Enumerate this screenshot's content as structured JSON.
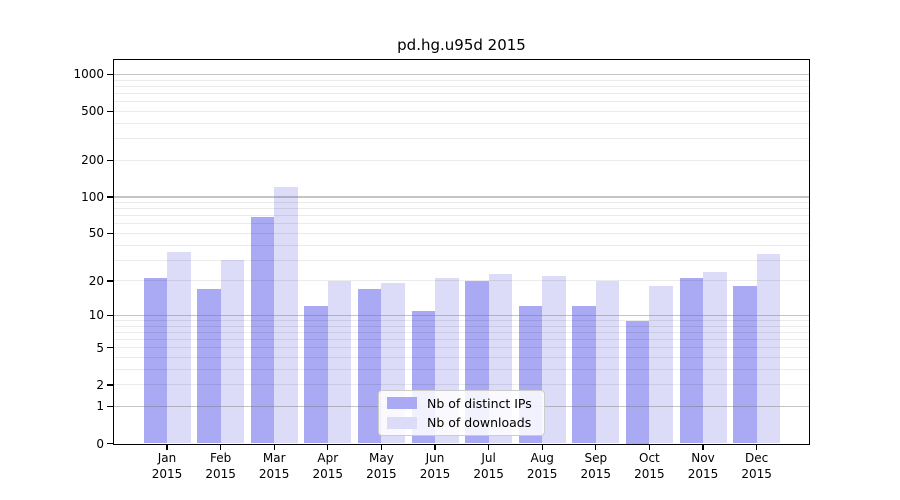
{
  "chart_data": {
    "type": "bar",
    "title": "pd.hg.u95d 2015",
    "scale": "log1p",
    "xlabel": "",
    "ylabel": "",
    "year": "2015",
    "months": [
      "Jan",
      "Feb",
      "Mar",
      "Apr",
      "May",
      "Jun",
      "Jul",
      "Aug",
      "Sep",
      "Oct",
      "Nov",
      "Dec"
    ],
    "categories": [
      "Jan 2015",
      "Feb 2015",
      "Mar 2015",
      "Apr 2015",
      "May 2015",
      "Jun 2015",
      "Jul 2015",
      "Aug 2015",
      "Sep 2015",
      "Oct 2015",
      "Nov 2015",
      "Dec 2015"
    ],
    "series": [
      {
        "name": "Nb of distinct IPs",
        "color": "#a9a9f4",
        "values": [
          21,
          17,
          68,
          12,
          17,
          11,
          20,
          12,
          12,
          9,
          21,
          18
        ]
      },
      {
        "name": "Nb of downloads",
        "color": "#dcdcf8",
        "values": [
          35,
          30,
          120,
          20,
          19,
          21,
          23,
          22,
          20,
          18,
          24,
          34
        ]
      }
    ],
    "yticks": [
      0,
      1,
      2,
      5,
      10,
      20,
      50,
      100,
      200,
      500,
      1000
    ],
    "ylim": [
      0,
      1330
    ],
    "grid": "on",
    "legend_position": "lower center"
  },
  "colors": {
    "bar_distinct_ips": "#a9a9f4",
    "bar_downloads": "#dcdcf8",
    "grid_major": "#c4c4c4",
    "grid_minor": "#ebebeb",
    "axis": "#000000",
    "legend_border": "#cccccc"
  }
}
